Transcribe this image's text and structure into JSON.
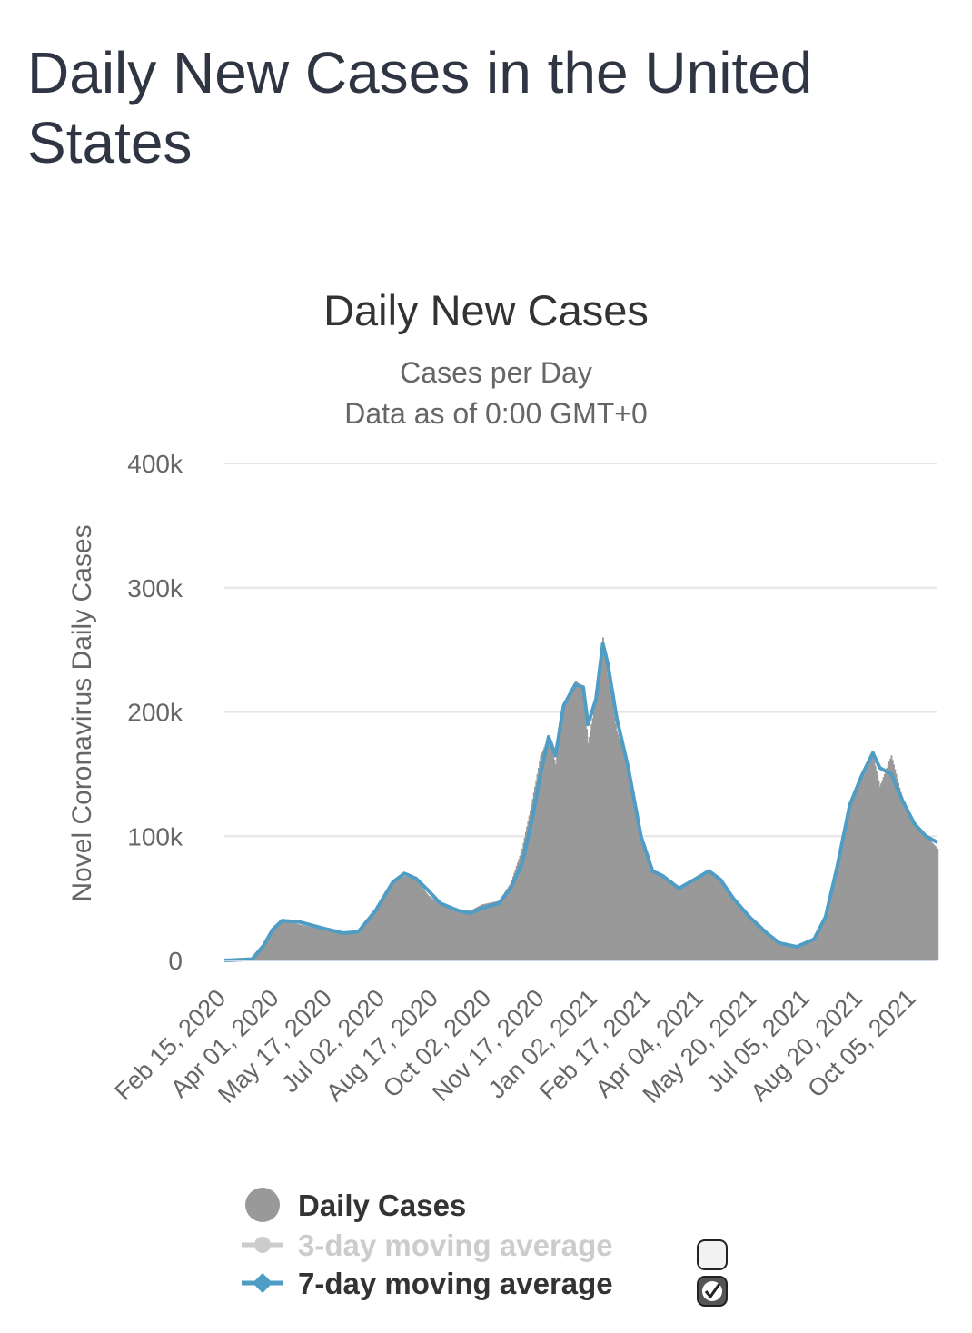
{
  "page": {
    "title": "Daily New Cases in the United States"
  },
  "chart_data": {
    "type": "bar",
    "title": "Daily New Cases",
    "subtitle_lines": [
      "Cases per Day",
      "Data as of 0:00 GMT+0"
    ],
    "ylabel": "Novel Coronavirus Daily Cases",
    "xlabel": "",
    "ylim": [
      0,
      400000
    ],
    "yticks": [
      0,
      100000,
      200000,
      300000,
      400000
    ],
    "ytick_labels": [
      "0",
      "100k",
      "200k",
      "300k",
      "400k"
    ],
    "xtick_labels": [
      "Feb 15, 2020",
      "Apr 01, 2020",
      "May 17, 2020",
      "Jul 02, 2020",
      "Aug 17, 2020",
      "Oct 02, 2020",
      "Nov 17, 2020",
      "Jan 02, 2021",
      "Feb 17, 2021",
      "Apr 04, 2021",
      "May 20, 2021",
      "Jul 05, 2021",
      "Aug 20, 2021",
      "Oct 05, 2021"
    ],
    "x_range": [
      "2020-02-15",
      "2021-10-25"
    ],
    "grid": true,
    "legend_position": "bottom",
    "series": [
      {
        "name": "Daily Cases",
        "type": "bar",
        "color": "#999999",
        "points": [
          [
            "2020-02-15",
            0
          ],
          [
            "2020-03-10",
            1000
          ],
          [
            "2020-03-20",
            12000
          ],
          [
            "2020-03-28",
            25000
          ],
          [
            "2020-04-05",
            32000
          ],
          [
            "2020-04-20",
            29000
          ],
          [
            "2020-05-10",
            25000
          ],
          [
            "2020-05-28",
            21000
          ],
          [
            "2020-06-10",
            22000
          ],
          [
            "2020-06-25",
            40000
          ],
          [
            "2020-07-10",
            62000
          ],
          [
            "2020-07-20",
            68000
          ],
          [
            "2020-07-30",
            65000
          ],
          [
            "2020-08-10",
            52000
          ],
          [
            "2020-08-20",
            45000
          ],
          [
            "2020-09-05",
            41000
          ],
          [
            "2020-09-15",
            40000
          ],
          [
            "2020-09-25",
            45000
          ],
          [
            "2020-10-10",
            48000
          ],
          [
            "2020-10-20",
            62000
          ],
          [
            "2020-10-30",
            90000
          ],
          [
            "2020-11-08",
            130000
          ],
          [
            "2020-11-15",
            165000
          ],
          [
            "2020-11-22",
            180000
          ],
          [
            "2020-11-28",
            158000
          ],
          [
            "2020-12-05",
            205000
          ],
          [
            "2020-12-15",
            225000
          ],
          [
            "2020-12-22",
            220000
          ],
          [
            "2020-12-26",
            175000
          ],
          [
            "2021-01-02",
            210000
          ],
          [
            "2021-01-08",
            260000
          ],
          [
            "2021-01-12",
            230000
          ],
          [
            "2021-01-20",
            185000
          ],
          [
            "2021-01-30",
            155000
          ],
          [
            "2021-02-10",
            100000
          ],
          [
            "2021-02-20",
            72000
          ],
          [
            "2021-03-01",
            68000
          ],
          [
            "2021-03-15",
            58000
          ],
          [
            "2021-03-30",
            66000
          ],
          [
            "2021-04-10",
            72000
          ],
          [
            "2021-04-20",
            65000
          ],
          [
            "2021-05-01",
            50000
          ],
          [
            "2021-05-15",
            35000
          ],
          [
            "2021-05-30",
            20000
          ],
          [
            "2021-06-10",
            13000
          ],
          [
            "2021-06-25",
            10000
          ],
          [
            "2021-07-10",
            17000
          ],
          [
            "2021-07-20",
            35000
          ],
          [
            "2021-07-30",
            75000
          ],
          [
            "2021-08-10",
            125000
          ],
          [
            "2021-08-20",
            145000
          ],
          [
            "2021-08-30",
            165000
          ],
          [
            "2021-09-05",
            140000
          ],
          [
            "2021-09-15",
            165000
          ],
          [
            "2021-09-25",
            128000
          ],
          [
            "2021-10-05",
            110000
          ],
          [
            "2021-10-15",
            100000
          ],
          [
            "2021-10-25",
            90000
          ]
        ]
      },
      {
        "name": "3-day moving average",
        "type": "line",
        "visible": false,
        "color": "#cccccc"
      },
      {
        "name": "7-day moving average",
        "type": "line",
        "visible": true,
        "color": "#4f9dc4",
        "points": [
          [
            "2020-02-15",
            0
          ],
          [
            "2020-03-10",
            1000
          ],
          [
            "2020-03-20",
            12000
          ],
          [
            "2020-03-28",
            25000
          ],
          [
            "2020-04-05",
            32000
          ],
          [
            "2020-04-20",
            31000
          ],
          [
            "2020-05-10",
            26000
          ],
          [
            "2020-05-28",
            22000
          ],
          [
            "2020-06-10",
            23000
          ],
          [
            "2020-06-25",
            40000
          ],
          [
            "2020-07-10",
            63000
          ],
          [
            "2020-07-20",
            70000
          ],
          [
            "2020-07-30",
            66000
          ],
          [
            "2020-08-10",
            56000
          ],
          [
            "2020-08-20",
            46000
          ],
          [
            "2020-09-05",
            40000
          ],
          [
            "2020-09-15",
            38000
          ],
          [
            "2020-09-25",
            42000
          ],
          [
            "2020-10-10",
            46000
          ],
          [
            "2020-10-20",
            58000
          ],
          [
            "2020-10-30",
            78000
          ],
          [
            "2020-11-08",
            115000
          ],
          [
            "2020-11-15",
            150000
          ],
          [
            "2020-11-22",
            180000
          ],
          [
            "2020-11-28",
            165000
          ],
          [
            "2020-12-05",
            205000
          ],
          [
            "2020-12-15",
            222000
          ],
          [
            "2020-12-22",
            220000
          ],
          [
            "2020-12-26",
            190000
          ],
          [
            "2021-01-02",
            210000
          ],
          [
            "2021-01-08",
            255000
          ],
          [
            "2021-01-12",
            240000
          ],
          [
            "2021-01-20",
            195000
          ],
          [
            "2021-01-30",
            155000
          ],
          [
            "2021-02-10",
            100000
          ],
          [
            "2021-02-20",
            72000
          ],
          [
            "2021-03-01",
            68000
          ],
          [
            "2021-03-15",
            58000
          ],
          [
            "2021-03-30",
            66000
          ],
          [
            "2021-04-10",
            72000
          ],
          [
            "2021-04-20",
            65000
          ],
          [
            "2021-05-01",
            50000
          ],
          [
            "2021-05-15",
            35000
          ],
          [
            "2021-05-30",
            22000
          ],
          [
            "2021-06-10",
            14000
          ],
          [
            "2021-06-25",
            11000
          ],
          [
            "2021-07-10",
            17000
          ],
          [
            "2021-07-20",
            35000
          ],
          [
            "2021-07-30",
            75000
          ],
          [
            "2021-08-10",
            125000
          ],
          [
            "2021-08-20",
            148000
          ],
          [
            "2021-08-30",
            167000
          ],
          [
            "2021-09-05",
            155000
          ],
          [
            "2021-09-15",
            150000
          ],
          [
            "2021-09-25",
            128000
          ],
          [
            "2021-10-05",
            110000
          ],
          [
            "2021-10-15",
            100000
          ],
          [
            "2021-10-25",
            95000
          ]
        ]
      }
    ]
  },
  "legend": {
    "items": [
      {
        "label": "Daily Cases",
        "color": "#999999",
        "label_color": "#333333",
        "active": true,
        "checkbox": false
      },
      {
        "label": "3-day moving average",
        "color": "#cccccc",
        "label_color": "#cccccc",
        "active": false,
        "checkbox": true,
        "checked": false
      },
      {
        "label": "7-day moving average",
        "color": "#4f9dc4",
        "label_color": "#333333",
        "active": true,
        "checkbox": true,
        "checked": true
      }
    ]
  }
}
